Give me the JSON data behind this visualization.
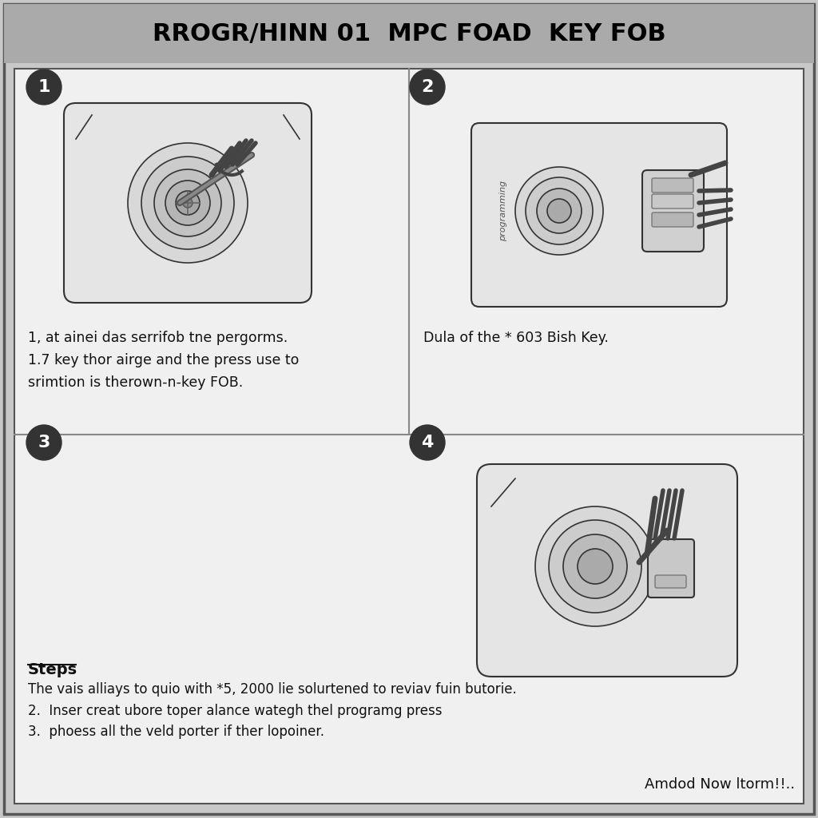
{
  "title_display": "RROGR/HINN 01  MPC FOAD  KEY FOB",
  "background_outer": "#c8c8c8",
  "background_inner": "#f0f0f0",
  "border_color": "#555555",
  "title_bg": "#aaaaaa",
  "title_color": "#000000",
  "step1_text_line1": "1, at ainei das serrifob tne pergorms.",
  "step1_text_line2": "1.7 key thor airge and the press use to",
  "step1_text_line3": "srimtion is therown-n-key FOB.",
  "step2_text": "Dula of the * 603 Bish Key.",
  "steps_header": "Steps",
  "steps_line1": "The vais alliays to quio with *5, 2000 lie solurtened to reviav fuin butorie.",
  "steps_line2": "2.  Inser creat ubore toper alance wategh thel programg press",
  "steps_line3": "3.  phoess all the veld porter if ther lopoiner.",
  "footer": "Amdod Now ltorm!!..",
  "divider_color": "#888888",
  "num_circle_color": "#333333",
  "num_text_color": "#ffffff",
  "line_color": "#333333",
  "draw_color": "#444444"
}
